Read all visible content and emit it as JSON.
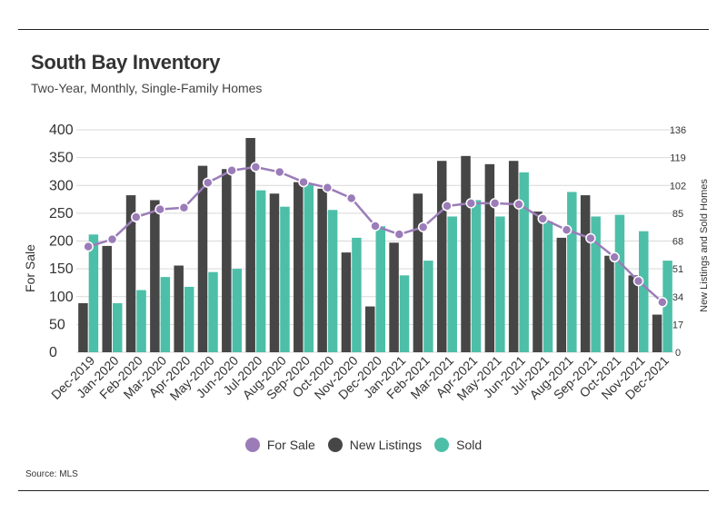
{
  "header": {
    "title": "South Bay Inventory",
    "subtitle": "Two-Year, Monthly, Single-Family Homes"
  },
  "source": "Source:  MLS",
  "colors": {
    "for_sale": "#9b7cb8",
    "new_listings": "#464646",
    "sold": "#4dbfa8",
    "grid": "#d9d9d9"
  },
  "legend": {
    "for_sale": "For Sale",
    "new_listings": "New Listings",
    "sold": "Sold"
  },
  "chart_data": {
    "type": "bar",
    "title": "South Bay Inventory",
    "subtitle": "Two-Year, Monthly, Single-Family Homes",
    "ylabel": "For Sale",
    "y2label": "New Listings and Sold Homes",
    "ylim": [
      0,
      400
    ],
    "y2lim": [
      0,
      136
    ],
    "yticks": [
      "400",
      "350",
      "300",
      "250",
      "200",
      "150",
      "100",
      "50",
      "0"
    ],
    "y2ticks": [
      "136",
      "119",
      "102",
      "85",
      "68",
      "51",
      "34",
      "17",
      "0"
    ],
    "grid": true,
    "legend_position": "bottom",
    "categories": [
      "Dec-2019",
      "Jan-2020",
      "Feb-2020",
      "Mar-2020",
      "Apr-2020",
      "May-2020",
      "Jun-2020",
      "Jul-2020",
      "Aug-2020",
      "Sep-2020",
      "Oct-2020",
      "Nov-2020",
      "Dec-2020",
      "Jan-2021",
      "Feb-2021",
      "Mar-2021",
      "Apr-2021",
      "May-2021",
      "Jun-2021",
      "Jul-2021",
      "Aug-2021",
      "Sep-2021",
      "Oct-2021",
      "Nov-2021",
      "Dec-2021"
    ],
    "series": [
      {
        "name": "For Sale",
        "type": "line",
        "axis": "left",
        "values": [
          190,
          203,
          243,
          257,
          260,
          305,
          327,
          333,
          324,
          306,
          296,
          277,
          227,
          212,
          225,
          263,
          268,
          268,
          266,
          240,
          220,
          205,
          171,
          128,
          90
        ]
      },
      {
        "name": "New Listings",
        "type": "bar",
        "axis": "right",
        "values": [
          30,
          65,
          96,
          93,
          53,
          114,
          112,
          131,
          97,
          104,
          100,
          61,
          28,
          67,
          97,
          117,
          120,
          115,
          117,
          86,
          70,
          96,
          59,
          47,
          23
        ]
      },
      {
        "name": "Sold",
        "type": "bar",
        "axis": "right",
        "values": [
          72,
          30,
          38,
          46,
          40,
          49,
          51,
          99,
          89,
          103,
          87,
          70,
          77,
          47,
          56,
          83,
          93,
          83,
          110,
          80,
          98,
          83,
          84,
          74,
          56
        ]
      }
    ]
  }
}
